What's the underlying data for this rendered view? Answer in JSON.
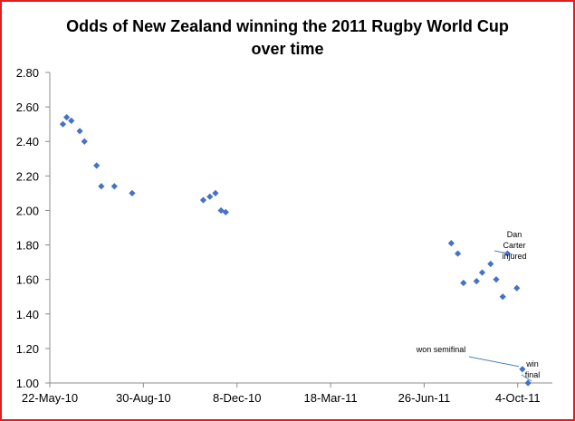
{
  "chart_data": {
    "type": "scatter",
    "title_line1": "Odds of New Zealand winning the 2011 Rugby World Cup",
    "title_line2": "over time",
    "xlabel": "",
    "ylabel": "",
    "marker_color": "#4472c4",
    "x_domain": [
      "2010-05-22",
      "2011-11-10"
    ],
    "xlim_days": [
      0,
      537
    ],
    "ylim": [
      1.0,
      2.8
    ],
    "y_ticks": [
      1.0,
      1.2,
      1.4,
      1.6,
      1.8,
      2.0,
      2.2,
      2.4,
      2.6,
      2.8
    ],
    "y_tick_labels": [
      "1.00",
      "1.20",
      "1.40",
      "1.60",
      "1.80",
      "2.00",
      "2.20",
      "2.40",
      "2.60",
      "2.80"
    ],
    "x_ticks": [
      {
        "day": 0,
        "label": "22-May-10"
      },
      {
        "day": 100,
        "label": "30-Aug-10"
      },
      {
        "day": 200,
        "label": "8-Dec-10"
      },
      {
        "day": 300,
        "label": "18-Mar-11"
      },
      {
        "day": 400,
        "label": "26-Jun-11"
      },
      {
        "day": 500,
        "label": "4-Oct-11"
      }
    ],
    "series": [
      {
        "name": "Odds",
        "points": [
          {
            "day": 14,
            "y": 2.5
          },
          {
            "day": 18,
            "y": 2.54
          },
          {
            "day": 23,
            "y": 2.52
          },
          {
            "day": 32,
            "y": 2.46
          },
          {
            "day": 37,
            "y": 2.4
          },
          {
            "day": 50,
            "y": 2.26
          },
          {
            "day": 55,
            "y": 2.14
          },
          {
            "day": 69,
            "y": 2.14
          },
          {
            "day": 88,
            "y": 2.1
          },
          {
            "day": 164,
            "y": 2.06
          },
          {
            "day": 171,
            "y": 2.08
          },
          {
            "day": 177,
            "y": 2.1
          },
          {
            "day": 183,
            "y": 2.0
          },
          {
            "day": 188,
            "y": 1.99
          },
          {
            "day": 429,
            "y": 1.81
          },
          {
            "day": 436,
            "y": 1.75
          },
          {
            "day": 442,
            "y": 1.58
          },
          {
            "day": 456,
            "y": 1.59
          },
          {
            "day": 462,
            "y": 1.64
          },
          {
            "day": 471,
            "y": 1.69
          },
          {
            "day": 477,
            "y": 1.6
          },
          {
            "day": 484,
            "y": 1.5
          },
          {
            "day": 489,
            "y": 1.75
          },
          {
            "day": 499,
            "y": 1.55
          },
          {
            "day": 505,
            "y": 1.08
          },
          {
            "day": 511,
            "y": 1.0
          }
        ]
      }
    ],
    "annotations": [
      {
        "lines": [
          "Dan",
          "Carter",
          "injured"
        ],
        "day": 490,
        "y": 1.75
      },
      {
        "lines": [
          "won semifinal"
        ],
        "day": 505,
        "y": 1.08
      },
      {
        "lines": [
          "win",
          "final"
        ],
        "day": 511,
        "y": 1.0
      }
    ]
  }
}
